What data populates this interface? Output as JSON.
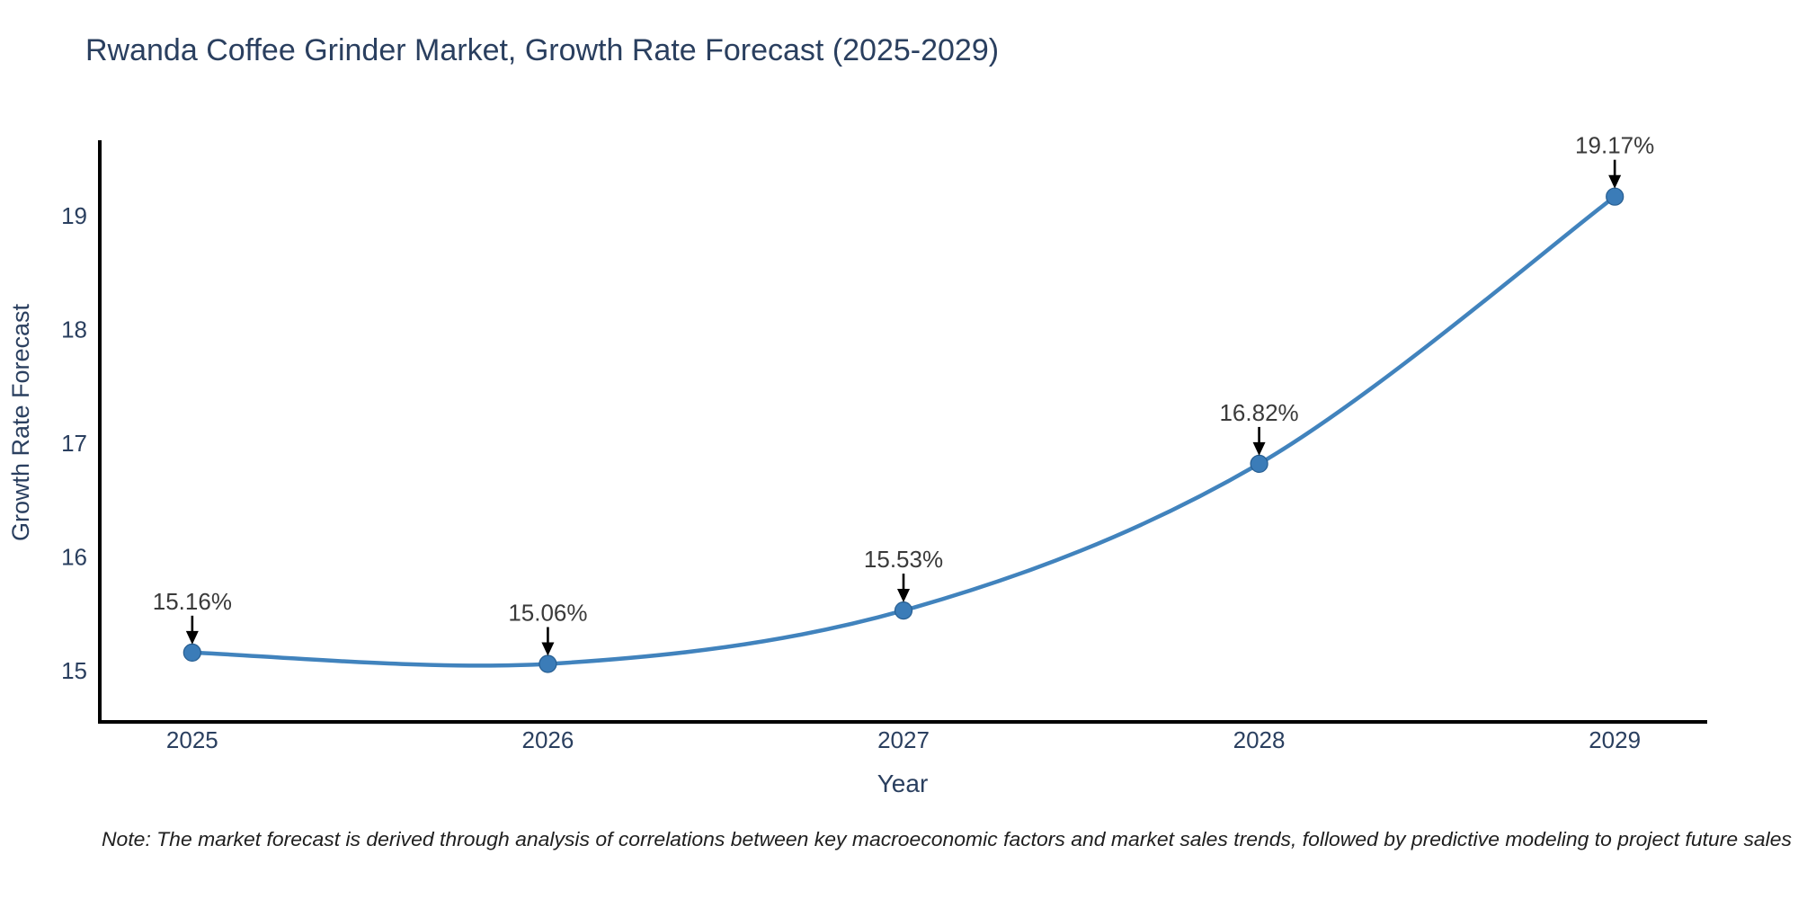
{
  "chart": {
    "title": "Rwanda Coffee Grinder Market, Growth Rate Forecast (2025-2029)",
    "xlabel": "Year",
    "ylabel": "Growth Rate Forecast",
    "note": "Note: The market forecast is derived through analysis of correlations between key macroeconomic factors and market sales trends, followed by predictive modeling to project future sales"
  },
  "chart_data": {
    "type": "line",
    "line_shape": "spline",
    "title": "Rwanda Coffee Grinder Market, Growth Rate Forecast (2025-2029)",
    "xlabel": "Year",
    "ylabel": "Growth Rate Forecast",
    "x": [
      2025,
      2026,
      2027,
      2028,
      2029
    ],
    "y": [
      15.16,
      15.06,
      15.53,
      16.82,
      19.17
    ],
    "point_labels": [
      "15.16%",
      "15.06%",
      "15.53%",
      "16.82%",
      "19.17%"
    ],
    "x_tick_labels": [
      "2025",
      "2026",
      "2027",
      "2028",
      "2029"
    ],
    "y_tick_values": [
      15,
      16,
      17,
      18,
      19
    ],
    "y_tick_labels": [
      "15",
      "16",
      "17",
      "18",
      "19"
    ],
    "xlim": [
      2024.74,
      2029.26
    ],
    "ylim": [
      14.55,
      19.65
    ],
    "grid": false,
    "legend": "none",
    "colors": {
      "line": "#4183bd",
      "marker_fill": "#3b7cb8",
      "marker_edge": "#275e91",
      "axis_line": "#000000",
      "title_text": "#2a3f5f",
      "tick_text": "#2a3f5f",
      "axis_title_text": "#2a3f5f",
      "annotation_text": "#3a3a3a",
      "arrow": "#000000",
      "note_text": "#1f1f1f",
      "background": "#ffffff"
    }
  }
}
